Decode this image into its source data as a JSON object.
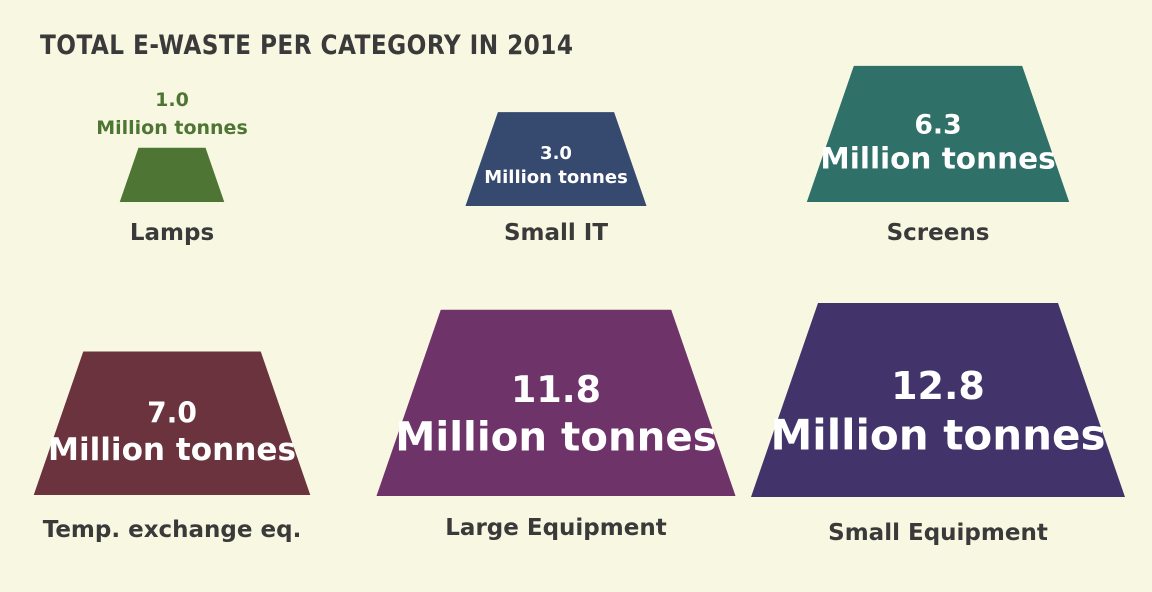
{
  "title": "TOTAL E-WASTE PER CATEGORY IN 2014",
  "chart_data": {
    "type": "bar",
    "title": "TOTAL E-WASTE PER CATEGORY IN 2014",
    "unit": "Million tonnes",
    "categories": [
      "Lamps",
      "Small IT",
      "Screens",
      "Temp. exchange eq.",
      "Large Equipment",
      "Small Equipment"
    ],
    "values": [
      1.0,
      3.0,
      6.3,
      7.0,
      11.8,
      12.8
    ],
    "value_labels": [
      "1.0",
      "3.0",
      "6.3",
      "7.0",
      "11.8",
      "12.8"
    ],
    "colors": [
      "#4e7534",
      "#36496f",
      "#2f7068",
      "#6b333d",
      "#6e3369",
      "#42346b"
    ]
  }
}
